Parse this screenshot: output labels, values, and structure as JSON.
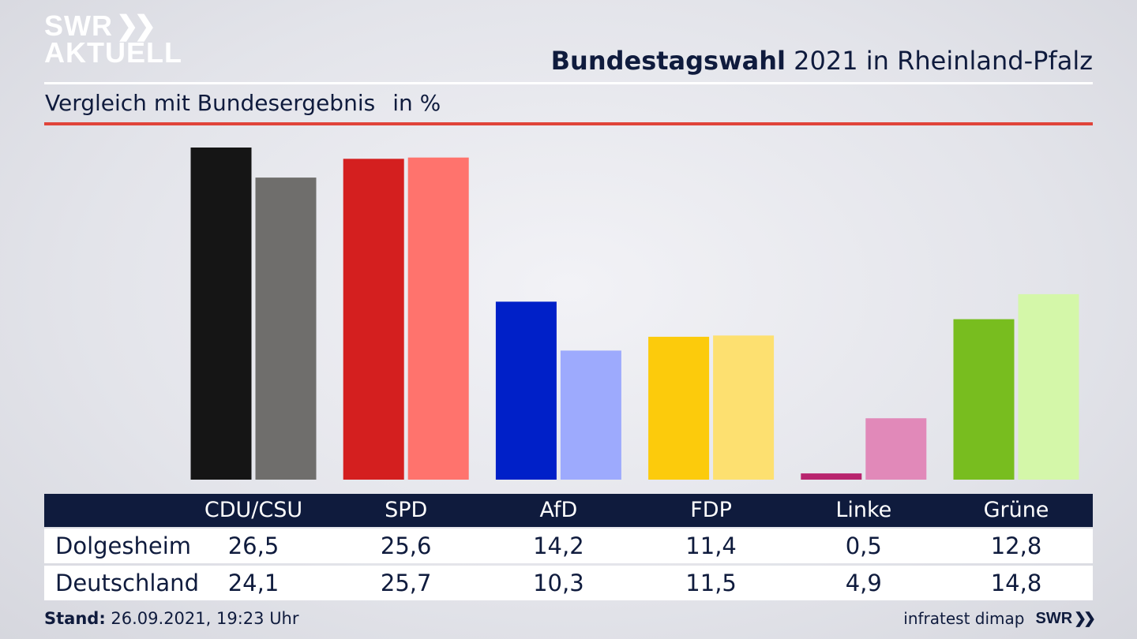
{
  "header": {
    "logo_line1": "SWR",
    "logo_line2": "AKTUELL",
    "title_bold": "Bundestagswahl",
    "title_rest": "2021 in Rheinland-Pfalz",
    "subtitle": "Vergleich mit Bundesergebnis",
    "unit": "in %"
  },
  "footer": {
    "stand_label": "Stand:",
    "stand_value": "26.09.2021, 19:23 Uhr",
    "source": "infratest dimap",
    "source_logo": "SWR"
  },
  "colors": {
    "accent_red": "#e0443a",
    "navy": "#0f1b3d"
  },
  "chart_data": {
    "type": "bar",
    "title": "Bundestagswahl 2021 in Rheinland-Pfalz",
    "subtitle": "Vergleich mit Bundesergebnis",
    "unit": "in %",
    "categories": [
      "CDU/CSU",
      "SPD",
      "AfD",
      "FDP",
      "Linke",
      "Grüne"
    ],
    "ylim": [
      0,
      26.5
    ],
    "series": [
      {
        "name": "Dolgesheim",
        "values": [
          26.5,
          25.6,
          14.2,
          11.4,
          0.5,
          12.8
        ],
        "labels": [
          "26,5",
          "25,6",
          "14,2",
          "11,4",
          "0,5",
          "12,8"
        ],
        "colors": [
          "#151515",
          "#d41f1f",
          "#0020c8",
          "#fccb0c",
          "#b8246e",
          "#78bd1f"
        ]
      },
      {
        "name": "Deutschland",
        "values": [
          24.1,
          25.7,
          10.3,
          11.5,
          4.9,
          14.8
        ],
        "labels": [
          "24,1",
          "25,7",
          "10,3",
          "11,5",
          "4,9",
          "14,8"
        ],
        "colors": [
          "#6f6e6c",
          "#ff736d",
          "#9daafd",
          "#fde070",
          "#e189b9",
          "#d4f7a9"
        ]
      }
    ],
    "grid": false,
    "legend": "table-below"
  }
}
